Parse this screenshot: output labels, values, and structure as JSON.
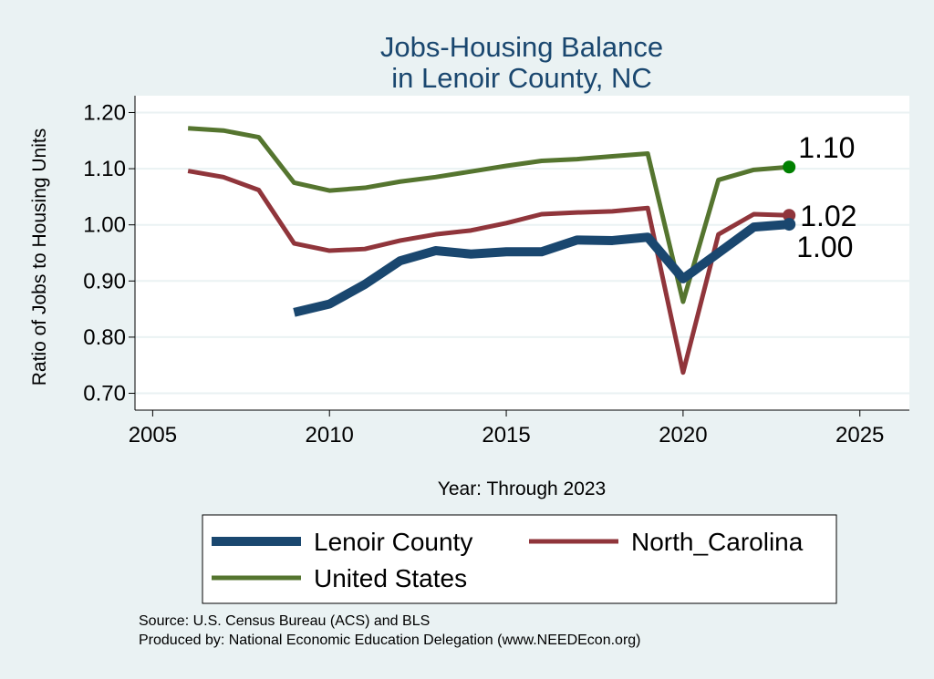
{
  "chart_data": {
    "type": "line",
    "title": [
      "Jobs-Housing Balance",
      "in Lenoir County, NC"
    ],
    "xlabel": "Year: Through 2023",
    "ylabel": "Ratio of Jobs to Housing Units",
    "xlim": [
      2004.5,
      2026.4
    ],
    "ylim": [
      0.67,
      1.23
    ],
    "xticks": [
      2005,
      2010,
      2015,
      2020,
      2025
    ],
    "yticks": [
      0.7,
      0.8,
      0.9,
      1.0,
      1.1,
      1.2
    ],
    "ytick_labels": [
      "0.70",
      "0.80",
      "0.90",
      "1.00",
      "1.10",
      "1.20"
    ],
    "grid": true,
    "series": [
      {
        "name": "Lenoir County",
        "color": "#1a476f",
        "width": 10,
        "end_label": "1.00",
        "end_marker": "#1a476f",
        "x": [
          2009,
          2010,
          2011,
          2012,
          2013,
          2014,
          2015,
          2016,
          2017,
          2018,
          2019,
          2020,
          2021,
          2022,
          2023
        ],
        "y": [
          0.844,
          0.859,
          0.894,
          0.936,
          0.954,
          0.948,
          0.952,
          0.952,
          0.973,
          0.972,
          0.978,
          0.904,
          0.95,
          0.996,
          1.001
        ]
      },
      {
        "name": "North_Carolina",
        "color": "#90353b",
        "width": 5,
        "end_label": "1.02",
        "end_marker": "#90353b",
        "x": [
          2006,
          2007,
          2008,
          2009,
          2010,
          2011,
          2012,
          2013,
          2014,
          2015,
          2016,
          2017,
          2018,
          2019,
          2020,
          2021,
          2022,
          2023
        ],
        "y": [
          1.096,
          1.085,
          1.062,
          0.967,
          0.954,
          0.957,
          0.972,
          0.983,
          0.99,
          1.003,
          1.019,
          1.022,
          1.024,
          1.03,
          0.737,
          0.983,
          1.019,
          1.017
        ]
      },
      {
        "name": "United States",
        "color": "#55752f",
        "width": 5,
        "end_label": "1.10",
        "end_marker": "#008000",
        "x": [
          2006,
          2007,
          2008,
          2009,
          2010,
          2011,
          2012,
          2013,
          2014,
          2015,
          2016,
          2017,
          2018,
          2019,
          2020,
          2021,
          2022,
          2023
        ],
        "y": [
          1.172,
          1.168,
          1.156,
          1.075,
          1.061,
          1.066,
          1.077,
          1.085,
          1.095,
          1.105,
          1.114,
          1.117,
          1.122,
          1.127,
          0.863,
          1.08,
          1.098,
          1.103
        ]
      }
    ],
    "legend": "bottom",
    "notes": [
      "Source: U.S. Census Bureau (ACS) and BLS",
      "Produced by: National Economic Education Delegation (www.NEEDEcon.org)"
    ]
  }
}
